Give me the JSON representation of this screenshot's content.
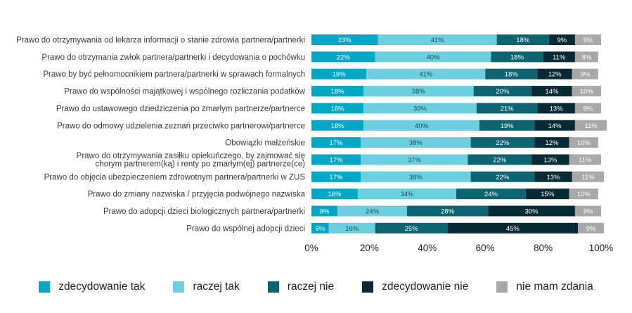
{
  "chart_data": {
    "type": "bar",
    "orientation": "horizontal",
    "stacked": true,
    "categories": [
      "Prawo do otrzymywania od lekarza informacji o stanie zdrowia partnera/partnerki",
      "Prawo do otrzymania zwłok partnera/partnerki i decydowania o pochówku",
      "Prawo by być pełnomocnikiem partnera/partnerki w sprawach formalnych",
      "Prawo do wspólności majątkowej i wspólnego rozliczania podatków",
      "Prawo do ustawowego dziedziczenia po zmarłym partnerze/partnerce",
      "Prawo do odmowy udzielenia zeznań przeciwko partnerowi/partnerce",
      "Obowiązki małżeńskie",
      "Prawo do otrzymywania zasiłku opiekuńczego, by zajmować się\nchorym partnerem(ką) i renty po zmarłym(ej) partnerze(ce)",
      "Prawo do objęcia ubezpieczeniem zdrowotnym partnera/partnerki  w ZUS",
      "Prawo do zmiany nazwiska / przyjęcia podwójnego nazwiska",
      "Prawo do adopcji dzieci biologicznych partnera/partnerki",
      "Prawo do wspólnej adopcji dzieci"
    ],
    "series": [
      {
        "name": "zdecydowanie tak",
        "color": "#00a8c6",
        "label_color": "#ffffff",
        "values": [
          23,
          22,
          19,
          18,
          18,
          18,
          17,
          17,
          17,
          16,
          9,
          6
        ],
        "labels": [
          "23%",
          "22%",
          "19%",
          "18%",
          "18%",
          "18%",
          "17%",
          "17%",
          "17%",
          "16%",
          "9%",
          "6%"
        ]
      },
      {
        "name": "raczej tak",
        "color": "#6ccfe0",
        "label_color": "#1d4a55",
        "values": [
          41,
          40,
          41,
          38,
          39,
          40,
          38,
          37,
          38,
          34,
          24,
          16
        ],
        "labels": [
          "41%",
          "40%",
          "41%",
          "38%",
          "39%",
          "40%",
          "38%",
          "37%",
          "38%",
          "34%",
          "24%",
          "16%"
        ]
      },
      {
        "name": "raczej nie",
        "color": "#0b6470",
        "label_color": "#ffffff",
        "values": [
          18,
          18,
          18,
          20,
          21,
          19,
          22,
          22,
          22,
          24,
          28,
          25
        ],
        "labels": [
          "18%",
          "18%",
          "18%",
          "20%",
          "21%",
          "19%",
          "22%",
          "22%",
          "22%",
          "24%",
          "28%",
          "25%"
        ]
      },
      {
        "name": "zdecydowanie nie",
        "color": "#062b35",
        "label_color": "#ffffff",
        "values": [
          9,
          11,
          12,
          14,
          13,
          14,
          12,
          13,
          13,
          15,
          30,
          45
        ],
        "labels": [
          "9%",
          "11%",
          "12%",
          "14%",
          "13%",
          "14%",
          "12%",
          "13%",
          "13%",
          "15%",
          "30%",
          "45%"
        ]
      },
      {
        "name": "nie mam zdania",
        "color": "#a8a8a8",
        "label_color": "#ffffff",
        "values": [
          9,
          8,
          9,
          10,
          9,
          11,
          10,
          11,
          11,
          10,
          9,
          9
        ],
        "labels": [
          "9%",
          "8%",
          "9%",
          "10%",
          "9%",
          "11%",
          "10%",
          "11%",
          "11%",
          "10%",
          "9%",
          "9%"
        ]
      }
    ],
    "xlim": [
      0,
      100
    ],
    "xticks": [
      0,
      20,
      40,
      60,
      80,
      100
    ],
    "xtick_labels": [
      "0%",
      "20%",
      "40%",
      "60%",
      "80%",
      "100%"
    ],
    "title": "",
    "xlabel": "",
    "ylabel": "",
    "grid": false,
    "legend_position": "bottom"
  }
}
